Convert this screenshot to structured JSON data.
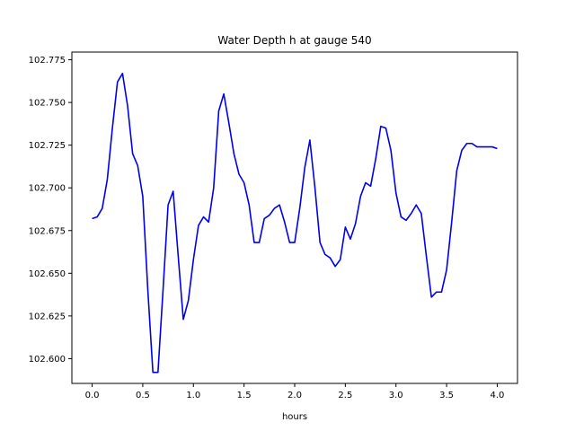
{
  "chart_data": {
    "type": "line",
    "title": "Water Depth h at gauge 540",
    "xlabel": "hours",
    "ylabel": "",
    "xlim": [
      -0.2,
      4.2
    ],
    "ylim": [
      102.5855,
      102.7795
    ],
    "grid": false,
    "legend": "none",
    "x_ticks": [
      0.0,
      0.5,
      1.0,
      1.5,
      2.0,
      2.5,
      3.0,
      3.5,
      4.0
    ],
    "x_tick_labels": [
      "0.0",
      "0.5",
      "1.0",
      "1.5",
      "2.0",
      "2.5",
      "3.0",
      "3.5",
      "4.0"
    ],
    "y_ticks": [
      102.6,
      102.625,
      102.65,
      102.675,
      102.7,
      102.725,
      102.75,
      102.775
    ],
    "y_tick_labels": [
      "102.600",
      "102.625",
      "102.650",
      "102.675",
      "102.700",
      "102.725",
      "102.750",
      "102.775"
    ],
    "series": [
      {
        "color": "#0000ee",
        "x": [
          0.0,
          0.05,
          0.1,
          0.15,
          0.2,
          0.25,
          0.3,
          0.35,
          0.4,
          0.45,
          0.5,
          0.55,
          0.6,
          0.65,
          0.7,
          0.75,
          0.8,
          0.85,
          0.9,
          0.95,
          1.0,
          1.05,
          1.1,
          1.15,
          1.2,
          1.25,
          1.3,
          1.35,
          1.4,
          1.45,
          1.5,
          1.55,
          1.6,
          1.65,
          1.7,
          1.75,
          1.8,
          1.85,
          1.9,
          1.95,
          2.0,
          2.05,
          2.1,
          2.15,
          2.2,
          2.25,
          2.3,
          2.35,
          2.4,
          2.45,
          2.5,
          2.55,
          2.6,
          2.65,
          2.7,
          2.75,
          2.8,
          2.85,
          2.9,
          2.95,
          3.0,
          3.05,
          3.1,
          3.15,
          3.2,
          3.25,
          3.3,
          3.35,
          3.4,
          3.45,
          3.5,
          3.55,
          3.6,
          3.65,
          3.7,
          3.75,
          3.8,
          3.85,
          3.9,
          3.95,
          4.0
        ],
        "y": [
          102.682,
          102.683,
          102.688,
          102.705,
          102.735,
          102.762,
          102.767,
          102.748,
          102.72,
          102.713,
          102.695,
          102.64,
          102.592,
          102.592,
          102.64,
          102.69,
          102.698,
          102.66,
          102.623,
          102.634,
          102.658,
          102.678,
          102.683,
          102.68,
          102.7,
          102.745,
          102.755,
          102.738,
          102.72,
          102.708,
          102.703,
          102.69,
          102.668,
          102.668,
          102.682,
          102.684,
          102.688,
          102.69,
          102.68,
          102.668,
          102.668,
          102.688,
          102.712,
          102.728,
          102.7,
          102.668,
          102.661,
          102.659,
          102.654,
          102.658,
          102.677,
          102.67,
          102.679,
          102.695,
          102.703,
          102.701,
          102.717,
          102.736,
          102.735,
          102.722,
          102.697,
          102.683,
          102.681,
          102.685,
          102.69,
          102.685,
          102.66,
          102.636,
          102.639,
          102.639,
          102.652,
          102.68,
          102.71,
          102.722,
          102.726,
          102.726,
          102.724,
          102.724,
          102.724,
          102.724,
          102.723
        ]
      }
    ]
  }
}
